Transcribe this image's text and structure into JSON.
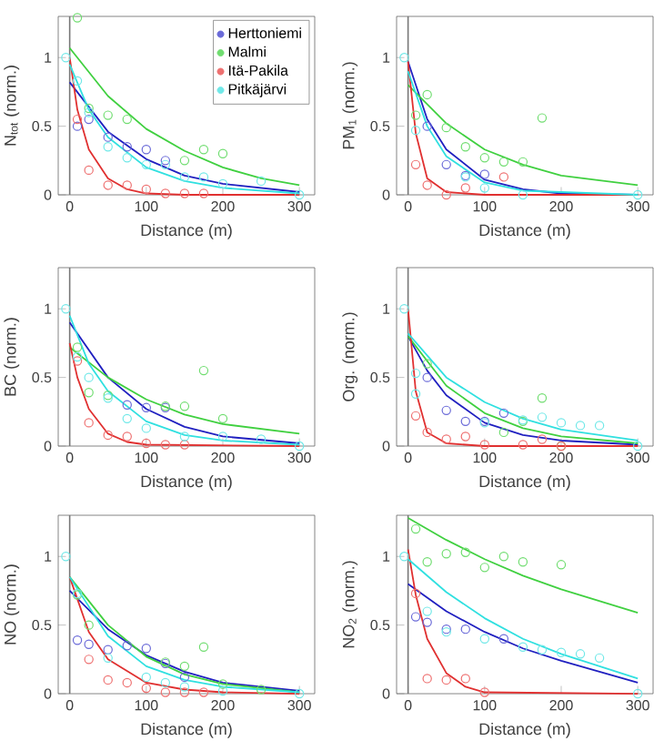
{
  "chart_data": [
    {
      "type": "scatter",
      "xlabel": "Distance (m)",
      "ylabel": "N$_{tot}$ (norm.)",
      "xlim": [
        -15,
        320
      ],
      "ylim": [
        0,
        1.3
      ],
      "xticks": [
        0,
        100,
        200,
        300
      ],
      "yticks": [
        0,
        0.5,
        1
      ],
      "marker": "circle",
      "legend": "top right",
      "ref_lines": [
        {
          "axis": "x",
          "value": 0,
          "color": "#777777"
        }
      ],
      "series": [
        {
          "name": "Herttoniemi",
          "color": "#6a6ad8",
          "x": [
            10,
            25,
            50,
            75,
            100,
            125
          ],
          "values": [
            0.5,
            0.55,
            0.42,
            0.35,
            0.33,
            0.25
          ]
        },
        {
          "name": "Malmi",
          "color": "#70dd70",
          "x": [
            10,
            25,
            50,
            75,
            150,
            175,
            200
          ],
          "values": [
            1.29,
            0.63,
            0.58,
            0.55,
            0.25,
            0.33,
            0.3
          ]
        },
        {
          "name": "Itä-Pakila",
          "color": "#ee7070",
          "x": [
            10,
            25,
            50,
            75,
            100,
            125,
            150,
            175
          ],
          "values": [
            0.55,
            0.18,
            0.07,
            0.07,
            0.04,
            0.01,
            0.01,
            0.01
          ]
        },
        {
          "name": "Pitkäjärvi",
          "color": "#70e8e8",
          "x": [
            -5,
            10,
            25,
            50,
            75,
            100,
            125,
            150,
            175,
            200,
            250,
            300
          ],
          "values": [
            1.0,
            0.83,
            0.6,
            0.35,
            0.27,
            0.22,
            0.22,
            0.13,
            0.13,
            0.08,
            0.1,
            0.0
          ]
        },
        {
          "type": "line",
          "marker": "none",
          "color": "#2020c0",
          "x": [
            0,
            50,
            100,
            150,
            200,
            300
          ],
          "values": [
            0.82,
            0.46,
            0.26,
            0.14,
            0.08,
            0.02
          ]
        },
        {
          "type": "line",
          "marker": "none",
          "color": "#40d040",
          "x": [
            0,
            50,
            100,
            150,
            200,
            250,
            300
          ],
          "values": [
            1.07,
            0.72,
            0.48,
            0.32,
            0.2,
            0.12,
            0.07
          ]
        },
        {
          "type": "line",
          "marker": "none",
          "color": "#e03030",
          "x": [
            0,
            10,
            25,
            50,
            75,
            100,
            150,
            300
          ],
          "values": [
            1.0,
            0.62,
            0.33,
            0.12,
            0.04,
            0.01,
            0.0,
            0.0
          ]
        },
        {
          "type": "line",
          "marker": "none",
          "color": "#30e0e0",
          "x": [
            0,
            25,
            50,
            100,
            150,
            200,
            300
          ],
          "values": [
            0.95,
            0.62,
            0.42,
            0.2,
            0.1,
            0.05,
            0.01
          ]
        }
      ]
    },
    {
      "type": "scatter",
      "xlabel": "Distance (m)",
      "ylabel": "PM$_{1}$ (norm.)",
      "xlim": [
        -15,
        320
      ],
      "ylim": [
        0,
        1.3
      ],
      "xticks": [
        0,
        100,
        200,
        300
      ],
      "yticks": [
        0,
        0.5,
        1
      ],
      "marker": "circle",
      "ref_lines": [
        {
          "axis": "x",
          "value": 0,
          "color": "#777777"
        }
      ],
      "series": [
        {
          "color": "#6a6ad8",
          "x": [
            25,
            50,
            75,
            100
          ],
          "values": [
            0.5,
            0.22,
            0.14,
            0.15
          ]
        },
        {
          "color": "#70dd70",
          "x": [
            10,
            25,
            50,
            75,
            100,
            125,
            150,
            175
          ],
          "values": [
            0.58,
            0.73,
            0.49,
            0.35,
            0.27,
            0.24,
            0.24,
            0.56
          ]
        },
        {
          "color": "#ee7070",
          "x": [
            10,
            25,
            50,
            75,
            125
          ],
          "values": [
            0.22,
            0.07,
            0.0,
            0.05,
            0.13
          ]
        },
        {
          "color": "#70e8e8",
          "x": [
            -5,
            10,
            75,
            100,
            150,
            300
          ],
          "values": [
            1.0,
            0.47,
            0.13,
            0.05,
            0.0,
            0.0
          ]
        },
        {
          "type": "line",
          "marker": "none",
          "color": "#2020c0",
          "x": [
            0,
            25,
            50,
            100,
            150,
            200,
            300
          ],
          "values": [
            0.97,
            0.55,
            0.33,
            0.11,
            0.04,
            0.01,
            0.0
          ]
        },
        {
          "type": "line",
          "marker": "none",
          "color": "#40d040",
          "x": [
            0,
            50,
            100,
            150,
            200,
            300
          ],
          "values": [
            0.8,
            0.52,
            0.33,
            0.22,
            0.14,
            0.07
          ]
        },
        {
          "type": "line",
          "marker": "none",
          "color": "#e03030",
          "x": [
            0,
            10,
            25,
            50,
            100,
            300
          ],
          "values": [
            0.97,
            0.45,
            0.12,
            0.02,
            0.0,
            0.0
          ]
        },
        {
          "type": "line",
          "marker": "none",
          "color": "#30e0e0",
          "x": [
            0,
            25,
            50,
            100,
            150,
            300
          ],
          "values": [
            0.9,
            0.5,
            0.28,
            0.09,
            0.03,
            0.0
          ]
        }
      ]
    },
    {
      "type": "scatter",
      "xlabel": "Distance (m)",
      "ylabel": "BC (norm.)",
      "xlim": [
        -15,
        320
      ],
      "ylim": [
        0,
        1.3
      ],
      "xticks": [
        0,
        100,
        200,
        300
      ],
      "yticks": [
        0,
        0.5,
        1
      ],
      "marker": "circle",
      "ref_lines": [
        {
          "axis": "x",
          "value": 0,
          "color": "#777777"
        }
      ],
      "series": [
        {
          "color": "#6a6ad8",
          "x": [
            75,
            100,
            125
          ],
          "values": [
            0.3,
            0.28,
            0.28
          ]
        },
        {
          "color": "#70dd70",
          "x": [
            10,
            25,
            50,
            125,
            150,
            175,
            200
          ],
          "values": [
            0.72,
            0.39,
            0.37,
            0.29,
            0.29,
            0.55,
            0.2
          ]
        },
        {
          "color": "#ee7070",
          "x": [
            10,
            25,
            50,
            75,
            100,
            125,
            150
          ],
          "values": [
            0.62,
            0.17,
            0.08,
            0.07,
            0.02,
            0.01,
            0.01
          ]
        },
        {
          "color": "#70e8e8",
          "x": [
            -5,
            10,
            25,
            50,
            75,
            100,
            150,
            200,
            250,
            300
          ],
          "values": [
            1.0,
            0.65,
            0.5,
            0.35,
            0.2,
            0.13,
            0.07,
            0.07,
            0.05,
            0.0
          ]
        },
        {
          "type": "line",
          "marker": "none",
          "color": "#2020c0",
          "x": [
            0,
            50,
            100,
            150,
            200,
            300
          ],
          "values": [
            0.9,
            0.5,
            0.27,
            0.14,
            0.07,
            0.02
          ]
        },
        {
          "type": "line",
          "marker": "none",
          "color": "#40d040",
          "x": [
            0,
            50,
            100,
            150,
            200,
            300
          ],
          "values": [
            0.72,
            0.5,
            0.34,
            0.23,
            0.16,
            0.09
          ]
        },
        {
          "type": "line",
          "marker": "none",
          "color": "#e03030",
          "x": [
            0,
            10,
            25,
            50,
            75,
            100,
            300
          ],
          "values": [
            0.75,
            0.5,
            0.27,
            0.09,
            0.03,
            0.01,
            0.0
          ]
        },
        {
          "type": "line",
          "marker": "none",
          "color": "#30e0e0",
          "x": [
            0,
            25,
            50,
            100,
            150,
            200,
            300
          ],
          "values": [
            0.95,
            0.6,
            0.4,
            0.18,
            0.08,
            0.04,
            0.01
          ]
        }
      ]
    },
    {
      "type": "scatter",
      "xlabel": "Distance (m)",
      "ylabel": "Org. (norm.)",
      "xlim": [
        -15,
        320
      ],
      "ylim": [
        0,
        1.3
      ],
      "xticks": [
        0,
        100,
        200,
        300
      ],
      "yticks": [
        0,
        0.5,
        1
      ],
      "marker": "circle",
      "ref_lines": [
        {
          "axis": "x",
          "value": 0,
          "color": "#777777"
        }
      ],
      "series": [
        {
          "color": "#6a6ad8",
          "x": [
            25,
            50,
            75,
            100,
            125
          ],
          "values": [
            0.5,
            0.26,
            0.18,
            0.18,
            0.24
          ]
        },
        {
          "color": "#70dd70",
          "x": [
            25,
            125,
            150,
            175,
            200
          ],
          "values": [
            0.6,
            0.1,
            0.18,
            0.35,
            0.0
          ]
        },
        {
          "color": "#ee7070",
          "x": [
            10,
            25,
            50,
            75,
            100,
            150,
            175,
            200
          ],
          "values": [
            0.22,
            0.1,
            0.05,
            0.07,
            0.01,
            0.01,
            0.05,
            0.0
          ]
        },
        {
          "color": "#70e8e8",
          "x": [
            -5,
            10,
            10,
            100,
            150,
            175,
            200,
            225,
            250,
            300
          ],
          "values": [
            1.0,
            0.38,
            0.53,
            0.17,
            0.19,
            0.21,
            0.17,
            0.15,
            0.15,
            0.0
          ]
        },
        {
          "type": "line",
          "marker": "none",
          "color": "#2020c0",
          "x": [
            0,
            25,
            50,
            100,
            150,
            200,
            300
          ],
          "values": [
            0.8,
            0.55,
            0.37,
            0.17,
            0.08,
            0.04,
            0.01
          ]
        },
        {
          "type": "line",
          "marker": "none",
          "color": "#40d040",
          "x": [
            0,
            50,
            100,
            150,
            200,
            300
          ],
          "values": [
            0.8,
            0.44,
            0.24,
            0.13,
            0.07,
            0.02
          ]
        },
        {
          "type": "line",
          "marker": "none",
          "color": "#e03030",
          "x": [
            0,
            10,
            25,
            50,
            100,
            300
          ],
          "values": [
            1.0,
            0.4,
            0.1,
            0.02,
            0.0,
            0.0
          ]
        },
        {
          "type": "line",
          "marker": "none",
          "color": "#30e0e0",
          "x": [
            0,
            50,
            100,
            150,
            200,
            300
          ],
          "values": [
            0.82,
            0.5,
            0.32,
            0.2,
            0.12,
            0.04
          ]
        }
      ]
    },
    {
      "type": "scatter",
      "xlabel": "Distance (m)",
      "ylabel": "NO (norm.)",
      "xlim": [
        -15,
        320
      ],
      "ylim": [
        0,
        1.3
      ],
      "xticks": [
        0,
        100,
        200,
        300
      ],
      "yticks": [
        0,
        0.5,
        1
      ],
      "marker": "circle",
      "ref_lines": [
        {
          "axis": "x",
          "value": 0,
          "color": "#777777"
        }
      ],
      "series": [
        {
          "color": "#6a6ad8",
          "x": [
            10,
            25,
            50,
            75,
            100,
            125,
            150
          ],
          "values": [
            0.39,
            0.36,
            0.32,
            0.35,
            0.33,
            0.22,
            0.12
          ]
        },
        {
          "color": "#70dd70",
          "x": [
            10,
            25,
            125,
            150,
            175,
            200,
            250
          ],
          "values": [
            0.72,
            0.5,
            0.23,
            0.2,
            0.34,
            0.07,
            0.03
          ]
        },
        {
          "color": "#ee7070",
          "x": [
            25,
            50,
            75,
            100,
            125,
            150,
            175
          ],
          "values": [
            0.25,
            0.1,
            0.08,
            0.04,
            0.01,
            0.01,
            0.01
          ]
        },
        {
          "color": "#70e8e8",
          "x": [
            -5,
            10,
            50,
            100,
            125,
            150,
            200,
            300
          ],
          "values": [
            1.0,
            0.73,
            0.26,
            0.12,
            0.08,
            0.05,
            0.02,
            0.0
          ]
        },
        {
          "type": "line",
          "marker": "none",
          "color": "#2020c0",
          "x": [
            0,
            50,
            100,
            150,
            200,
            300
          ],
          "values": [
            0.75,
            0.47,
            0.28,
            0.16,
            0.08,
            0.02
          ]
        },
        {
          "type": "line",
          "marker": "none",
          "color": "#40d040",
          "x": [
            0,
            50,
            100,
            150,
            200,
            300
          ],
          "values": [
            0.85,
            0.5,
            0.27,
            0.14,
            0.07,
            0.01
          ]
        },
        {
          "type": "line",
          "marker": "none",
          "color": "#e03030",
          "x": [
            0,
            25,
            50,
            100,
            150,
            200,
            300
          ],
          "values": [
            0.85,
            0.45,
            0.25,
            0.08,
            0.03,
            0.01,
            0.0
          ]
        },
        {
          "type": "line",
          "marker": "none",
          "color": "#30e0e0",
          "x": [
            0,
            50,
            100,
            150,
            200,
            300
          ],
          "values": [
            0.85,
            0.42,
            0.2,
            0.1,
            0.05,
            0.01
          ]
        }
      ]
    },
    {
      "type": "scatter",
      "xlabel": "Distance (m)",
      "ylabel": "NO$_{2}$ (norm.)",
      "xlim": [
        -15,
        320
      ],
      "ylim": [
        0,
        1.3
      ],
      "xticks": [
        0,
        100,
        200,
        300
      ],
      "yticks": [
        0,
        0.5,
        1
      ],
      "marker": "circle",
      "ref_lines": [
        {
          "axis": "x",
          "value": 0,
          "color": "#777777"
        }
      ],
      "series": [
        {
          "color": "#6a6ad8",
          "x": [
            10,
            25,
            50,
            75,
            100,
            125
          ],
          "values": [
            0.56,
            0.52,
            0.47,
            0.47,
            null,
            0.4
          ]
        },
        {
          "color": "#70dd70",
          "x": [
            10,
            25,
            50,
            75,
            100,
            125,
            150,
            200
          ],
          "values": [
            1.2,
            0.96,
            1.02,
            1.03,
            0.92,
            1.0,
            0.96,
            0.94
          ]
        },
        {
          "color": "#ee7070",
          "x": [
            10,
            25,
            50,
            75,
            100
          ],
          "values": [
            0.73,
            0.11,
            0.1,
            0.11,
            0.01
          ]
        },
        {
          "color": "#70e8e8",
          "x": [
            -5,
            25,
            50,
            100,
            150,
            175,
            200,
            225,
            250,
            300
          ],
          "values": [
            1.0,
            0.6,
            0.45,
            0.4,
            0.34,
            0.32,
            0.3,
            0.29,
            0.26,
            0.0
          ]
        },
        {
          "type": "line",
          "marker": "none",
          "color": "#2020c0",
          "x": [
            0,
            50,
            100,
            150,
            200,
            300
          ],
          "values": [
            0.8,
            0.6,
            0.45,
            0.33,
            0.24,
            0.08
          ]
        },
        {
          "type": "line",
          "marker": "none",
          "color": "#40d040",
          "x": [
            0,
            50,
            100,
            150,
            200,
            300
          ],
          "values": [
            1.28,
            1.12,
            0.98,
            0.86,
            0.76,
            0.59
          ]
        },
        {
          "type": "line",
          "marker": "none",
          "color": "#e03030",
          "x": [
            0,
            10,
            25,
            50,
            75,
            100,
            300
          ],
          "values": [
            1.05,
            0.72,
            0.4,
            0.15,
            0.05,
            0.01,
            0.0
          ]
        },
        {
          "type": "line",
          "marker": "none",
          "color": "#30e0e0",
          "x": [
            0,
            50,
            100,
            150,
            200,
            300
          ],
          "values": [
            0.98,
            0.74,
            0.55,
            0.4,
            0.29,
            0.11
          ]
        }
      ]
    }
  ]
}
